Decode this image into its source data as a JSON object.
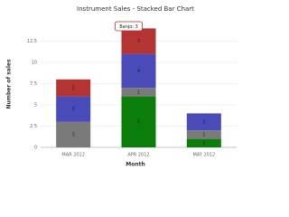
{
  "chart_data": {
    "type": "stacked-bar",
    "title": "Instrument Sales - Stacked Bar Chart",
    "x_label": "Month",
    "y_label": "Number of sales",
    "categories": [
      "MAR 2012",
      "APR 2012",
      "MAY 2012"
    ],
    "series": [
      {
        "color": "#0b7d0b",
        "values": [
          0,
          6,
          1
        ]
      },
      {
        "color": "#7a7a7a",
        "values": [
          3,
          1,
          1
        ]
      },
      {
        "color": "#4a4ab8",
        "values": [
          3,
          4,
          2
        ]
      },
      {
        "name": "Banjo",
        "color": "#b43434",
        "values": [
          2,
          3,
          0
        ]
      }
    ],
    "tooltip": "Banjo: 3",
    "ylim": [
      0,
      15
    ],
    "yticks": [
      0,
      2.5,
      5,
      7.5,
      10,
      12.5
    ],
    "grid": true
  }
}
